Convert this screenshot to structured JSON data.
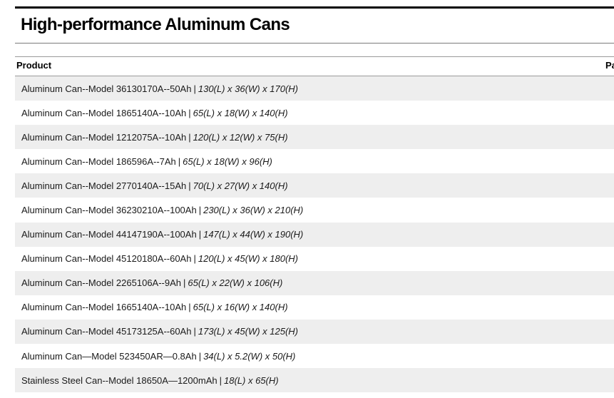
{
  "page": {
    "title": "High-performance Aluminum Cans"
  },
  "table": {
    "columns": [
      "Product",
      "Pa"
    ],
    "rows": [
      {
        "name": "Aluminum Can--Model 36130170A--50Ah",
        "sep": "|",
        "dims": "130(L) x 36(W) x 170(H)"
      },
      {
        "name": "Aluminum Can--Model 1865140A--10Ah ",
        "sep": "|",
        "dims": "65(L) x 18(W) x 140(H)"
      },
      {
        "name": "Aluminum Can--Model 1212075A--10Ah ",
        "sep": "|",
        "dims": "120(L) x 12(W) x 75(H)"
      },
      {
        "name": "Aluminum Can--Model 186596A--7Ah",
        "sep": "|",
        "dims": "65(L) x 18(W) x 96(H)"
      },
      {
        "name": "Aluminum Can--Model 2770140A--15Ah",
        "sep": "|",
        "dims": "70(L) x 27(W) x 140(H)"
      },
      {
        "name": "Aluminum Can--Model 36230210A--100Ah",
        "sep": "|",
        "dims": "230(L) x 36(W) x 210(H)"
      },
      {
        "name": "Aluminum Can--Model 44147190A--100Ah",
        "sep": "|",
        "dims": " 147(L) x 44(W) x 190(H)"
      },
      {
        "name": "Aluminum Can--Model 45120180A--60Ah",
        "sep": "|",
        "dims": "120(L) x 45(W) x 180(H)"
      },
      {
        "name": "Aluminum Can--Model 2265106A--9Ah ",
        "sep": "|",
        "dims": "65(L) x 22(W) x 106(H)"
      },
      {
        "name": "Aluminum Can--Model 1665140A--10Ah",
        "sep": "|",
        "dims": "65(L) x 16(W) x 140(H)"
      },
      {
        "name": "Aluminum Can--Model 45173125A--60Ah",
        "sep": "|",
        "dims": "173(L) x 45(W) x 125(H)"
      },
      {
        "name": "Aluminum Can—Model 523450AR—0.8Ah",
        "sep": "|",
        "dims": "34(L) x 5.2(W) x 50(H)"
      },
      {
        "name": "Stainless Steel Can--Model 18650A—1200mAh",
        "sep": "|",
        "dims": "18(L) x 65(H)"
      }
    ]
  }
}
